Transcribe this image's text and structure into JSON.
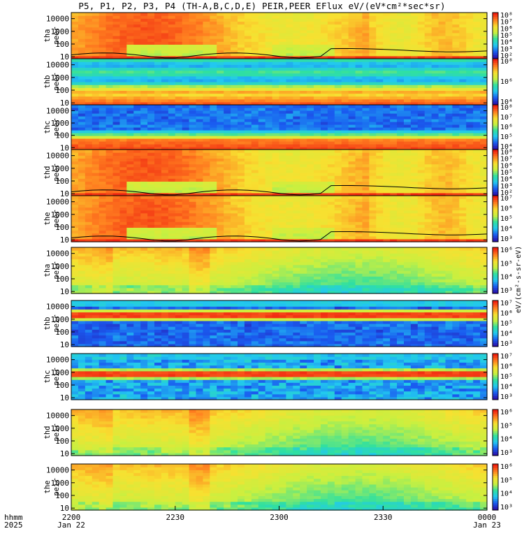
{
  "title": "P5, P1, P2, P3, P4 (TH-A,B,C,D,E) PEIR,PEER EFlux eV/(eV*cm²*sec*sr)",
  "colorbar_unit": "eV/(cm²-s-sr-eV)",
  "time_axis": {
    "row1_label": "hhmm",
    "row2_label": "2025",
    "ticks": [
      {
        "t": 0,
        "label": "2200",
        "date": "Jan 22"
      },
      {
        "t": 30,
        "label": "2230",
        "date": ""
      },
      {
        "t": 60,
        "label": "2300",
        "date": ""
      },
      {
        "t": 90,
        "label": "2330",
        "date": ""
      },
      {
        "t": 120,
        "label": "0000",
        "date": "Jan 23"
      }
    ],
    "range_minutes": [
      0,
      120
    ]
  },
  "chart_data": {
    "type": "heatmap",
    "description_type": "stacked energy-time spectrograms",
    "x_unit": "minutes after 2025-01-22 22:00 UT",
    "xlim": [
      0,
      120
    ],
    "y_scale": "log",
    "ylim": [
      7,
      30000
    ],
    "y_ticks": [
      "10",
      "100",
      "1000",
      "10000"
    ],
    "colormap": [
      "#2a0fa8",
      "#1a5cf0",
      "#22c8f0",
      "#30e0a0",
      "#c8f040",
      "#f8e030",
      "#ff8020",
      "#f02010"
    ],
    "panels": [
      {
        "probe": "tha",
        "species": "peer",
        "cb_ticks": [
          "10²",
          "10³",
          "10⁴",
          "10⁵",
          "10⁶",
          "10⁷",
          "10⁸"
        ],
        "base": "hot_sheath",
        "black_line": true
      },
      {
        "probe": "thb",
        "species": "peer",
        "cb_ticks": [
          "10⁴",
          "10⁶",
          "10⁸"
        ],
        "base": "banded_elec",
        "black_line": false
      },
      {
        "probe": "thc",
        "species": "peer",
        "cb_ticks": [
          "10⁴",
          "10⁵",
          "10⁶",
          "10⁷",
          "10⁸"
        ],
        "base": "banded_elec_dark",
        "black_line": false
      },
      {
        "probe": "thd",
        "species": "peer",
        "cb_ticks": [
          "10²",
          "10³",
          "10⁴",
          "10⁵",
          "10⁶",
          "10⁷",
          "10⁸"
        ],
        "base": "hot_sheath",
        "black_line": true
      },
      {
        "probe": "the",
        "species": "peer",
        "cb_ticks": [
          "10³",
          "10⁴",
          "10⁵",
          "10⁶",
          "10⁷"
        ],
        "base": "hot_sheath",
        "black_line": true
      },
      {
        "probe": "tha",
        "species": "peir",
        "cb_ticks": [
          "10³",
          "10⁴",
          "10⁵",
          "10⁶"
        ],
        "base": "ion_green",
        "black_line": false
      },
      {
        "probe": "thb",
        "species": "peir",
        "cb_ticks": [
          "10³",
          "10⁴",
          "10⁵",
          "10⁶",
          "10⁷"
        ],
        "base": "ion_band",
        "black_line": false
      },
      {
        "probe": "thc",
        "species": "peir",
        "cb_ticks": [
          "10³",
          "10⁴",
          "10⁵",
          "10⁶",
          "10⁷"
        ],
        "base": "ion_band2",
        "black_line": false
      },
      {
        "probe": "thd",
        "species": "peir",
        "cb_ticks": [
          "10³",
          "10⁴",
          "10⁵",
          "10⁶"
        ],
        "base": "ion_green",
        "black_line": false
      },
      {
        "probe": "the",
        "species": "peir",
        "cb_ticks": [
          "10³",
          "10⁴",
          "10⁵",
          "10⁶"
        ],
        "base": "ion_green",
        "black_line": false
      }
    ]
  }
}
